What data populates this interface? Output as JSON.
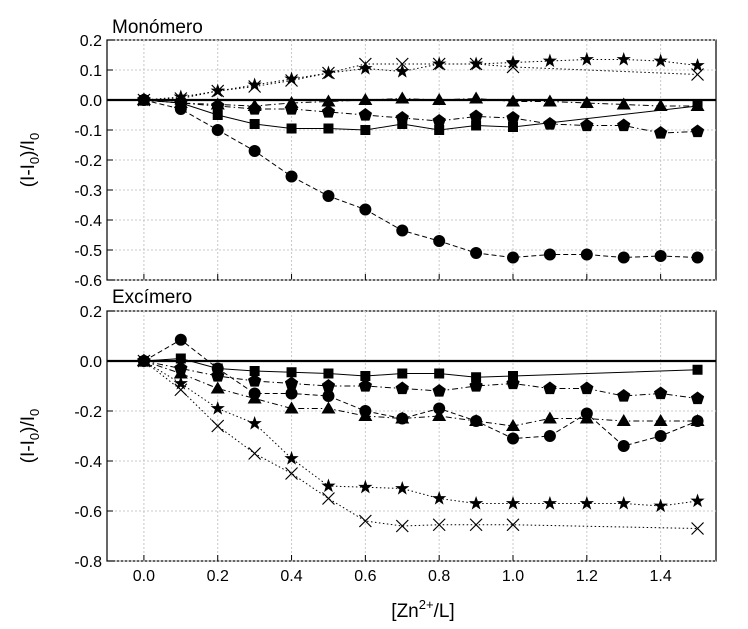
{
  "chart_data": [
    {
      "type": "line",
      "title": "Monómero",
      "ylabel": "(I-I0)/I0",
      "xlabel": "",
      "xlim": [
        -0.1,
        1.55
      ],
      "ylim": [
        -0.6,
        0.2
      ],
      "yticks": [
        "0.2",
        "0.1",
        "0.0",
        "-0.1",
        "-0.2",
        "-0.3",
        "-0.4",
        "-0.5",
        "-0.6"
      ],
      "grid": true,
      "series": [
        {
          "marker": "square",
          "dash": "solid",
          "x": [
            0,
            0.1,
            0.2,
            0.3,
            0.4,
            0.5,
            0.6,
            0.7,
            0.8,
            0.9,
            1.0,
            1.5
          ],
          "values": [
            0,
            -0.01,
            -0.05,
            -0.08,
            -0.095,
            -0.095,
            -0.1,
            -0.08,
            -0.1,
            -0.085,
            -0.09,
            -0.02
          ]
        },
        {
          "marker": "circle",
          "dash": "dashed",
          "x": [
            0,
            0.1,
            0.2,
            0.3,
            0.4,
            0.5,
            0.6,
            0.7,
            0.8,
            0.9,
            1.0,
            1.1,
            1.2,
            1.3,
            1.4,
            1.5
          ],
          "values": [
            0,
            -0.03,
            -0.1,
            -0.17,
            -0.255,
            -0.32,
            -0.365,
            -0.435,
            -0.47,
            -0.51,
            -0.525,
            -0.515,
            -0.515,
            -0.525,
            -0.52,
            -0.525
          ]
        },
        {
          "marker": "triangle",
          "dash": "dashdot",
          "x": [
            0,
            0.1,
            0.2,
            0.3,
            0.4,
            0.5,
            0.6,
            0.7,
            0.8,
            0.9,
            1.0,
            1.1,
            1.2,
            1.3,
            1.4,
            1.5
          ],
          "values": [
            0,
            -0.01,
            -0.015,
            -0.02,
            -0.01,
            -0.005,
            0.0,
            0.005,
            0.0,
            0.005,
            -0.005,
            -0.005,
            -0.01,
            -0.015,
            -0.02,
            -0.02
          ]
        },
        {
          "marker": "pentagon",
          "dash": "dashdot",
          "x": [
            0,
            0.1,
            0.2,
            0.3,
            0.4,
            0.5,
            0.6,
            0.7,
            0.8,
            0.9,
            1.0,
            1.1,
            1.2,
            1.3,
            1.4,
            1.5
          ],
          "values": [
            0,
            -0.01,
            -0.02,
            -0.03,
            -0.03,
            -0.04,
            -0.05,
            -0.06,
            -0.07,
            -0.055,
            -0.06,
            -0.08,
            -0.085,
            -0.085,
            -0.11,
            -0.105
          ]
        },
        {
          "marker": "star",
          "dash": "dotted",
          "x": [
            0,
            0.1,
            0.2,
            0.3,
            0.4,
            0.5,
            0.6,
            0.7,
            0.8,
            0.9,
            1.0,
            1.1,
            1.2,
            1.3,
            1.4,
            1.5
          ],
          "values": [
            0,
            0.01,
            0.03,
            0.05,
            0.07,
            0.09,
            0.105,
            0.095,
            0.12,
            0.12,
            0.125,
            0.13,
            0.135,
            0.135,
            0.13,
            0.115
          ]
        },
        {
          "marker": "cross",
          "dash": "dotted",
          "x": [
            0,
            0.1,
            0.2,
            0.3,
            0.4,
            0.5,
            0.6,
            0.7,
            0.8,
            0.9,
            1.0,
            1.5
          ],
          "values": [
            0,
            0.005,
            0.03,
            0.045,
            0.065,
            0.09,
            0.12,
            0.12,
            0.12,
            0.12,
            0.11,
            0.085
          ]
        }
      ]
    },
    {
      "type": "line",
      "title": "Excímero",
      "ylabel": "(I-I0)/I0",
      "xlabel": "[Zn2+/L]",
      "xlim": [
        -0.1,
        1.55
      ],
      "ylim": [
        -0.8,
        0.2
      ],
      "yticks": [
        "0.2",
        "0.0",
        "-0.2",
        "-0.4",
        "-0.6",
        "-0.8"
      ],
      "xticks": [
        "0.0",
        "0.2",
        "0.4",
        "0.6",
        "0.8",
        "1.0",
        "1.2",
        "1.4"
      ],
      "grid": true,
      "series": [
        {
          "marker": "square",
          "dash": "solid",
          "x": [
            0,
            0.1,
            0.2,
            0.3,
            0.4,
            0.5,
            0.6,
            0.7,
            0.8,
            0.9,
            1.0,
            1.5
          ],
          "values": [
            0,
            0.01,
            -0.03,
            -0.04,
            -0.045,
            -0.05,
            -0.06,
            -0.05,
            -0.05,
            -0.065,
            -0.06,
            -0.035
          ]
        },
        {
          "marker": "circle",
          "dash": "dashed",
          "x": [
            0,
            0.1,
            0.2,
            0.3,
            0.4,
            0.5,
            0.6,
            0.7,
            0.8,
            0.9,
            1.0,
            1.1,
            1.2,
            1.3,
            1.4,
            1.5
          ],
          "values": [
            0,
            0.085,
            -0.03,
            -0.13,
            -0.13,
            -0.14,
            -0.2,
            -0.23,
            -0.19,
            -0.24,
            -0.31,
            -0.3,
            -0.21,
            -0.34,
            -0.3,
            -0.24
          ]
        },
        {
          "marker": "triangle",
          "dash": "dashdot",
          "x": [
            0,
            0.1,
            0.2,
            0.3,
            0.4,
            0.5,
            0.6,
            0.7,
            0.8,
            0.9,
            1.0,
            1.1,
            1.2,
            1.3,
            1.4,
            1.5
          ],
          "values": [
            0,
            -0.05,
            -0.11,
            -0.15,
            -0.19,
            -0.19,
            -0.22,
            -0.23,
            -0.22,
            -0.24,
            -0.26,
            -0.23,
            -0.23,
            -0.24,
            -0.24,
            -0.24
          ]
        },
        {
          "marker": "pentagon",
          "dash": "dashdot",
          "x": [
            0,
            0.1,
            0.2,
            0.3,
            0.4,
            0.5,
            0.6,
            0.7,
            0.8,
            0.9,
            1.0,
            1.1,
            1.2,
            1.3,
            1.4,
            1.5
          ],
          "values": [
            0,
            -0.03,
            -0.06,
            -0.08,
            -0.09,
            -0.1,
            -0.1,
            -0.11,
            -0.12,
            -0.1,
            -0.09,
            -0.11,
            -0.11,
            -0.14,
            -0.13,
            -0.15
          ]
        },
        {
          "marker": "star",
          "dash": "dotted",
          "x": [
            0,
            0.1,
            0.2,
            0.3,
            0.4,
            0.5,
            0.6,
            0.7,
            0.8,
            0.9,
            1.0,
            1.1,
            1.2,
            1.3,
            1.4,
            1.5
          ],
          "values": [
            0,
            -0.09,
            -0.19,
            -0.25,
            -0.39,
            -0.5,
            -0.505,
            -0.51,
            -0.55,
            -0.57,
            -0.57,
            -0.57,
            -0.57,
            -0.57,
            -0.58,
            -0.56
          ]
        },
        {
          "marker": "cross",
          "dash": "dotted",
          "x": [
            0,
            0.1,
            0.2,
            0.3,
            0.4,
            0.5,
            0.6,
            0.7,
            0.8,
            0.9,
            1.0,
            1.5
          ],
          "values": [
            0,
            -0.115,
            -0.26,
            -0.37,
            -0.45,
            -0.55,
            -0.64,
            -0.66,
            -0.655,
            -0.655,
            -0.655,
            -0.67
          ]
        }
      ]
    }
  ]
}
